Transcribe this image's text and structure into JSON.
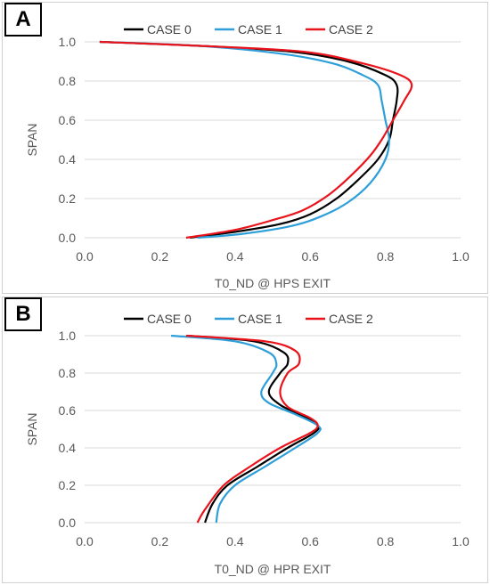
{
  "colors": {
    "case0": "#000000",
    "case1": "#2e9fd8",
    "case2": "#e8131b",
    "grid": "#d9d9d9",
    "text": "#595959"
  },
  "chart_data": [
    {
      "panel_label": "A",
      "type": "line",
      "xlabel": "T0_ND @ HPS EXIT",
      "ylabel": "SPAN",
      "xlim": [
        0,
        1
      ],
      "ylim": [
        0,
        1
      ],
      "xticks": [
        "0.0",
        "0.2",
        "0.4",
        "0.6",
        "0.8",
        "1.0"
      ],
      "yticks": [
        "0.0",
        "0.2",
        "0.4",
        "0.6",
        "0.8",
        "1.0"
      ],
      "grid": "horizontal",
      "legend": "top",
      "series": [
        {
          "name": "CASE 0",
          "points": [
            [
              0.28,
              0.0
            ],
            [
              0.4,
              0.03
            ],
            [
              0.52,
              0.07
            ],
            [
              0.6,
              0.12
            ],
            [
              0.67,
              0.2
            ],
            [
              0.73,
              0.3
            ],
            [
              0.78,
              0.4
            ],
            [
              0.81,
              0.5
            ],
            [
              0.82,
              0.6
            ],
            [
              0.83,
              0.7
            ],
            [
              0.83,
              0.78
            ],
            [
              0.8,
              0.83
            ],
            [
              0.7,
              0.9
            ],
            [
              0.55,
              0.95
            ],
            [
              0.3,
              0.98
            ],
            [
              0.04,
              1.0
            ]
          ]
        },
        {
          "name": "CASE 1",
          "points": [
            [
              0.3,
              0.0
            ],
            [
              0.42,
              0.02
            ],
            [
              0.55,
              0.06
            ],
            [
              0.63,
              0.11
            ],
            [
              0.7,
              0.18
            ],
            [
              0.76,
              0.28
            ],
            [
              0.8,
              0.4
            ],
            [
              0.81,
              0.5
            ],
            [
              0.8,
              0.6
            ],
            [
              0.79,
              0.7
            ],
            [
              0.78,
              0.78
            ],
            [
              0.74,
              0.83
            ],
            [
              0.66,
              0.89
            ],
            [
              0.52,
              0.94
            ],
            [
              0.3,
              0.98
            ],
            [
              0.04,
              1.0
            ]
          ]
        },
        {
          "name": "CASE 2",
          "points": [
            [
              0.27,
              0.0
            ],
            [
              0.4,
              0.04
            ],
            [
              0.5,
              0.09
            ],
            [
              0.58,
              0.14
            ],
            [
              0.65,
              0.22
            ],
            [
              0.71,
              0.32
            ],
            [
              0.76,
              0.42
            ],
            [
              0.79,
              0.5
            ],
            [
              0.82,
              0.6
            ],
            [
              0.85,
              0.7
            ],
            [
              0.87,
              0.78
            ],
            [
              0.84,
              0.83
            ],
            [
              0.74,
              0.89
            ],
            [
              0.58,
              0.95
            ],
            [
              0.3,
              0.98
            ],
            [
              0.04,
              1.0
            ]
          ]
        }
      ]
    },
    {
      "panel_label": "B",
      "type": "line",
      "xlabel": "T0_ND @ HPR EXIT",
      "ylabel": "SPAN",
      "xlim": [
        0,
        1
      ],
      "ylim": [
        0,
        1
      ],
      "xticks": [
        "0.0",
        "0.2",
        "0.4",
        "0.6",
        "0.8",
        "1.0"
      ],
      "yticks": [
        "0.0",
        "0.2",
        "0.4",
        "0.6",
        "0.8",
        "1.0"
      ],
      "grid": "horizontal",
      "legend": "top",
      "series": [
        {
          "name": "CASE 0",
          "points": [
            [
              0.32,
              0.0
            ],
            [
              0.34,
              0.1
            ],
            [
              0.38,
              0.2
            ],
            [
              0.46,
              0.3
            ],
            [
              0.54,
              0.4
            ],
            [
              0.61,
              0.48
            ],
            [
              0.62,
              0.52
            ],
            [
              0.58,
              0.57
            ],
            [
              0.52,
              0.63
            ],
            [
              0.49,
              0.7
            ],
            [
              0.52,
              0.8
            ],
            [
              0.54,
              0.85
            ],
            [
              0.53,
              0.91
            ],
            [
              0.45,
              0.97
            ],
            [
              0.27,
              1.0
            ]
          ]
        },
        {
          "name": "CASE 1",
          "points": [
            [
              0.35,
              0.0
            ],
            [
              0.36,
              0.1
            ],
            [
              0.4,
              0.2
            ],
            [
              0.48,
              0.3
            ],
            [
              0.56,
              0.4
            ],
            [
              0.62,
              0.48
            ],
            [
              0.62,
              0.52
            ],
            [
              0.56,
              0.58
            ],
            [
              0.49,
              0.64
            ],
            [
              0.47,
              0.7
            ],
            [
              0.5,
              0.8
            ],
            [
              0.51,
              0.85
            ],
            [
              0.49,
              0.91
            ],
            [
              0.4,
              0.97
            ],
            [
              0.23,
              1.0
            ]
          ]
        },
        {
          "name": "CASE 2",
          "points": [
            [
              0.3,
              0.0
            ],
            [
              0.32,
              0.07
            ],
            [
              0.37,
              0.2
            ],
            [
              0.44,
              0.3
            ],
            [
              0.52,
              0.4
            ],
            [
              0.6,
              0.48
            ],
            [
              0.62,
              0.52
            ],
            [
              0.6,
              0.56
            ],
            [
              0.54,
              0.62
            ],
            [
              0.52,
              0.7
            ],
            [
              0.54,
              0.8
            ],
            [
              0.57,
              0.85
            ],
            [
              0.56,
              0.92
            ],
            [
              0.48,
              0.97
            ],
            [
              0.27,
              1.0
            ]
          ]
        }
      ]
    }
  ]
}
